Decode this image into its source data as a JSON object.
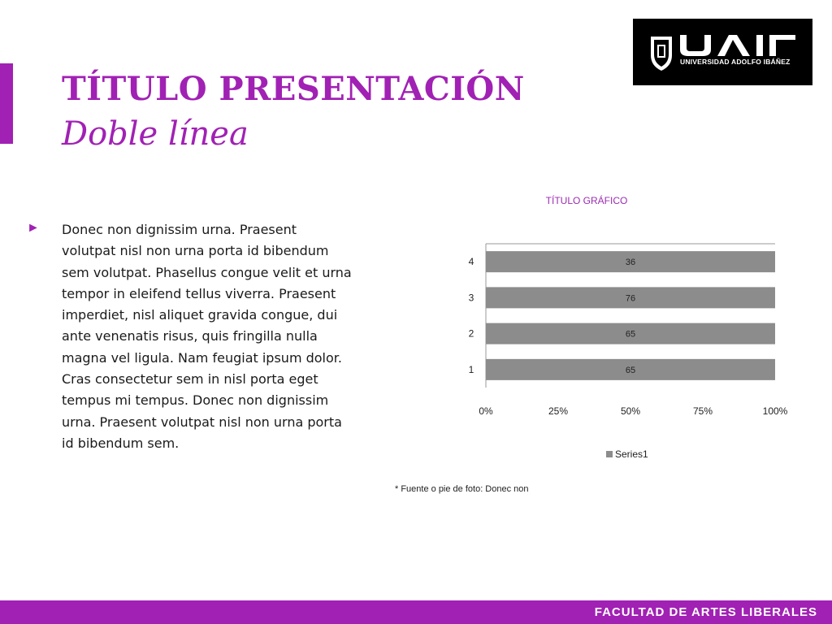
{
  "slide": {
    "title": "TÍTULO PRESENTACIÓN",
    "subtitle": "Doble línea",
    "body": "Donec non dignissim urna. Praesent volutpat nisl non urna porta id bibendum sem volutpat. Phasellus congue velit et urna tempor in eleifend tellus viverra. Praesent imperdiet, nisl aliquet gravida congue, dui ante venenatis risus, quis fringilla nulla magna vel ligula. Nam feugiat ipsum dolor. Cras consectetur sem in nisl porta eget tempus mi tempus. Donec non dignissim urna. Praesent volutpat nisl non urna porta id bibendum sem.",
    "bullet_icon": "triangle-right-icon",
    "caption": "* Fuente o pie de foto: Donec non",
    "footer": "FACULTAD DE ARTES LIBERALES",
    "accent_color": "#a121b4"
  },
  "logo": {
    "text": "UNIVERSIDAD ADOLFO IBÁÑEZ",
    "letters": "UAI"
  },
  "chart_data": {
    "type": "bar",
    "orientation": "horizontal",
    "stacked": "100%",
    "title": "TÍTULO GRÁFICO",
    "categories": [
      "1",
      "2",
      "3",
      "4"
    ],
    "series": [
      {
        "name": "Series1",
        "values": [
          65,
          65,
          76,
          36
        ],
        "color": "#8c8c8c"
      }
    ],
    "xticks": [
      "0%",
      "25%",
      "50%",
      "75%",
      "100%"
    ],
    "xlim": [
      0,
      100
    ],
    "legend": "bottom",
    "grid": false
  }
}
